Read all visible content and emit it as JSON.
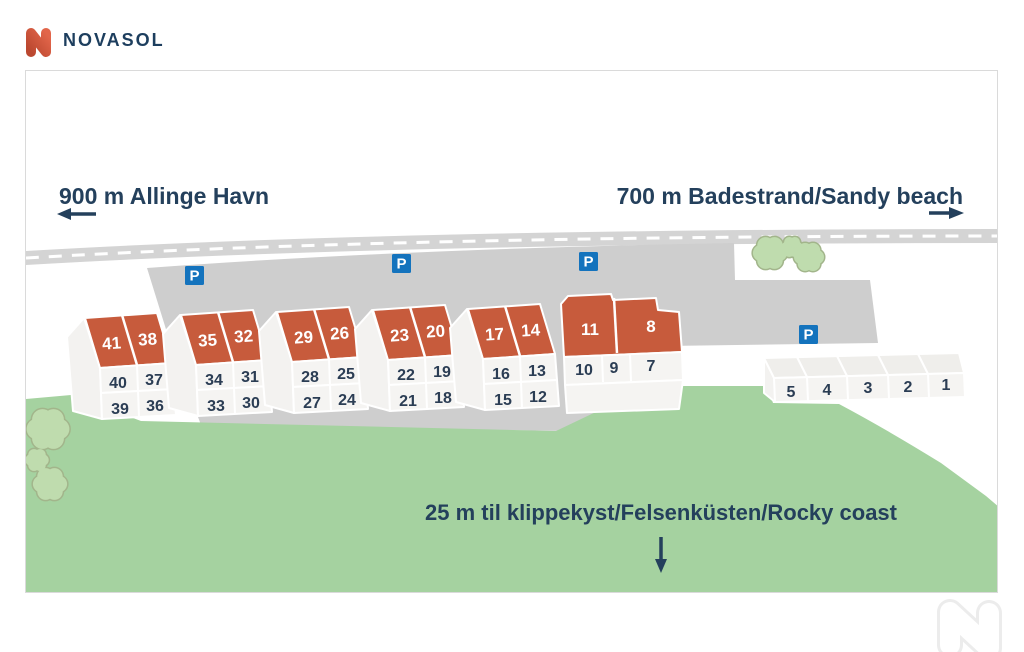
{
  "brand": {
    "name": "NOVASOL"
  },
  "distances": {
    "left": "900 m Allinge Havn",
    "right": "700 m Badestrand/Sandy beach",
    "bottom": "25 m til klippekyst/Felsenküsten/Rocky coast"
  },
  "parking_label": "P",
  "houses": {
    "b1": {
      "roof": [
        "41",
        "38"
      ],
      "mid": [
        "40",
        "37"
      ],
      "low": [
        "39",
        "36"
      ]
    },
    "b2": {
      "roof": [
        "35",
        "32"
      ],
      "mid": [
        "34",
        "31"
      ],
      "low": [
        "33",
        "30"
      ]
    },
    "b3": {
      "roof": [
        "29",
        "26"
      ],
      "mid": [
        "28",
        "25"
      ],
      "low": [
        "27",
        "24"
      ]
    },
    "b4": {
      "roof": [
        "23",
        "20"
      ],
      "mid": [
        "22",
        "19"
      ],
      "low": [
        "21",
        "18"
      ]
    },
    "b5": {
      "roof": [
        "17",
        "14"
      ],
      "mid": [
        "16",
        "13"
      ],
      "low": [
        "15",
        "12"
      ]
    },
    "b6": {
      "roof": [
        "11",
        "8"
      ],
      "mid": [
        "10",
        "9",
        "7"
      ]
    },
    "b7": {
      "row": [
        "5",
        "4",
        "3",
        "2",
        "1"
      ]
    }
  },
  "colors": {
    "roof_orange": "#c75b3c",
    "grass_green": "#a5d2a0",
    "road_gray": "#d4d4d4",
    "parking_gray": "#cecece",
    "text_navy": "#24405c",
    "parking_blue": "#1473bd",
    "logo_orange": "#d4533a"
  }
}
